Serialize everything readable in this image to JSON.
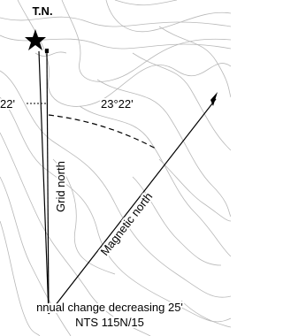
{
  "labels": {
    "true_north": "T.N.",
    "left_angle": "22'",
    "declination": "23°22'",
    "grid_north": "Grid north",
    "magnetic_north": "Magnetic north",
    "annual_change": "nnual change decreasing 25'",
    "map_sheet": "NTS 115N/15"
  }
}
